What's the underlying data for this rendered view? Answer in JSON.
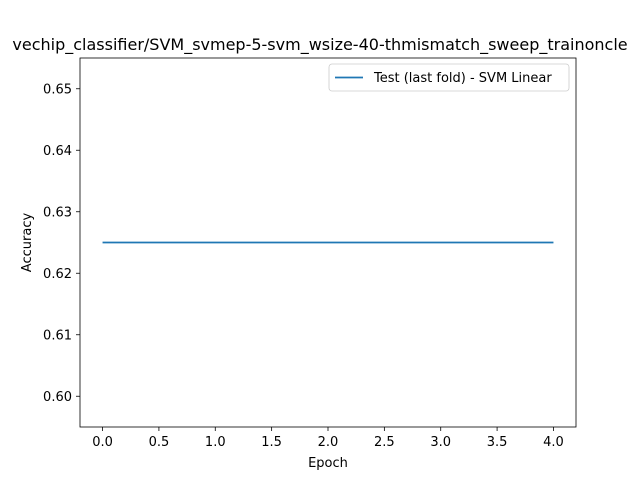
{
  "chart_data": {
    "type": "line",
    "title": "vechip_classifier/SVM_svmep-5-svm_wsize-40-thmismatch_sweep_trainoncle",
    "xlabel": "Epoch",
    "ylabel": "Accuracy",
    "xlim": [
      -0.2,
      4.2
    ],
    "ylim": [
      0.595,
      0.655
    ],
    "xticks": [
      0.0,
      0.5,
      1.0,
      1.5,
      2.0,
      2.5,
      3.0,
      3.5,
      4.0
    ],
    "xtick_labels": [
      "0.0",
      "0.5",
      "1.0",
      "1.5",
      "2.0",
      "2.5",
      "3.0",
      "3.5",
      "4.0"
    ],
    "yticks": [
      0.6,
      0.61,
      0.62,
      0.63,
      0.64,
      0.65
    ],
    "ytick_labels": [
      "0.60",
      "0.61",
      "0.62",
      "0.63",
      "0.64",
      "0.65"
    ],
    "grid": false,
    "legend_placement": "top-right",
    "series": [
      {
        "name": "Test (last fold) - SVM Linear",
        "color": "#1f77b4",
        "x": [
          0,
          1,
          2,
          3,
          4
        ],
        "y": [
          0.625,
          0.625,
          0.625,
          0.625,
          0.625
        ]
      }
    ]
  }
}
